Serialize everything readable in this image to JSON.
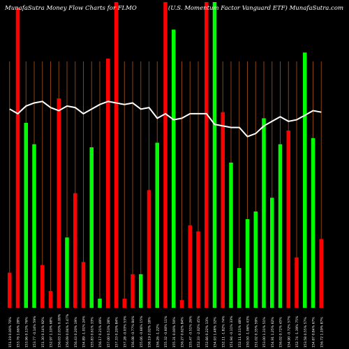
{
  "header": {
    "left": "MunafaSutra  Money Flow  Charts for FLMO",
    "right": "(U.S. Momentum Factor Vanguard ETF) MunafaSutra.com"
  },
  "colors": {
    "up": "#00ff00",
    "down": "#ff0000",
    "grid": "#8b4513",
    "line": "#ffffff",
    "background": "#000000"
  },
  "chart_data": {
    "type": "bar",
    "title": "",
    "xlabel": "",
    "ylabel": "",
    "ylim": [
      0,
      100
    ],
    "series": [
      {
        "values": [
          11.5,
          98,
          60.5,
          53.5,
          14,
          5.5,
          68.5,
          23,
          37.5,
          15,
          52.5,
          3,
          81.5,
          100,
          3,
          11,
          11,
          38.5,
          54,
          100,
          91,
          2.5,
          27,
          25,
          100,
          100,
          64,
          47.5,
          13,
          29,
          31.5,
          62,
          36,
          53.5,
          58,
          16.5,
          83.5,
          55.5,
          22.5
        ]
      }
    ],
    "bar_colors": [
      "red",
      "red",
      "green",
      "green",
      "red",
      "red",
      "red",
      "green",
      "red",
      "red",
      "green",
      "green",
      "red",
      "red",
      "red",
      "red",
      "green",
      "red",
      "green",
      "red",
      "green",
      "red",
      "red",
      "red",
      "red",
      "green",
      "red",
      "green",
      "green",
      "green",
      "green",
      "green",
      "green",
      "green",
      "red",
      "red",
      "green",
      "green",
      "red"
    ],
    "line": [
      65,
      63.5,
      66,
      67,
      67.5,
      65.5,
      64.5,
      66,
      65.5,
      63.5,
      65,
      66.5,
      67.5,
      67,
      66.5,
      67,
      65,
      65.5,
      62,
      63.5,
      61.5,
      62,
      63.5,
      63.5,
      63.5,
      60,
      59.5,
      59,
      59,
      56,
      57,
      59.5,
      61,
      62.5,
      61,
      61.5,
      63,
      64.5,
      64
    ],
    "x_labels": [
      "151.19 0.00% 70%",
      "153.76 1.66% 28%",
      "153.96 0.13% 76%",
      "153.77 -0.14% 59%",
      "151.30 0.14% 92%",
      "152.97 1.10% 68%",
      "156.03 2.03% 0.00%",
      "156.09 0.04% 5.47%",
      "156.43 0.20% 19%",
      "154.89 -1.01% 24%",
      "155.83 0.61% 33%",
      "156.17 0.21% 49%",
      "157.00 0.53% 28%",
      "157.33 0.20% 84%",
      "157.28 -0.03% 53%",
      "156.08 -0.77% 84%",
      "155.06 -0.66% 15%",
      "158.19 2.02% 18%",
      "156.26 -1.22%",
      "155.32 -0.60% 11%",
      "155.31 0.00% 50%",
      "156.27 0.62% 84%",
      "155.47 -0.51% 26%",
      "152.33 -2.02% 45%",
      "152.66 0.22% 13%",
      "154.93 1.48% 32%",
      "152.11 -1.82% 74%",
      "151.94 -0.11% 33%",
      "152.11 0.11% 48%",
      "150.50 -1.06% 43%",
      "151.02 0.35% 59%",
      "153.00 1.31% 51%",
      "154.91 1.25% 62%",
      "156.02 0.72% 45%",
      "154.90 -0.72% 57%",
      "152.74 -1.39% 75%",
      "153.58 0.55% 57%",
      "154.87 0.84% 67%",
      "156.72 1.19% 87%"
    ]
  }
}
